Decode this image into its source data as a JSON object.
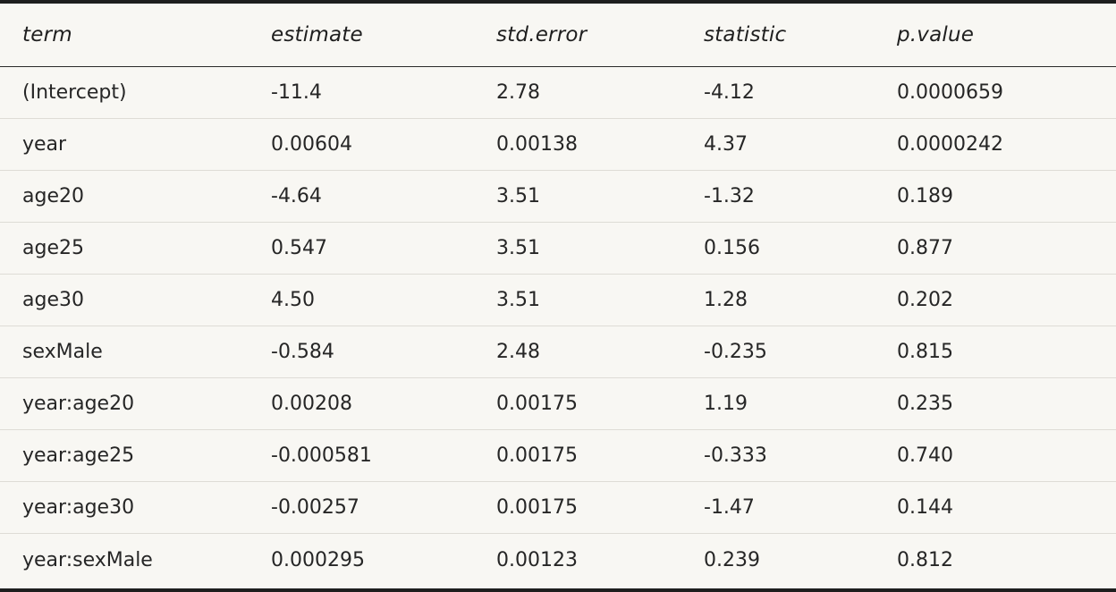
{
  "table": {
    "headers": [
      "term",
      "estimate",
      "std.error",
      "statistic",
      "p.value"
    ],
    "rows": [
      [
        "(Intercept)",
        "-11.4",
        "2.78",
        "-4.12",
        "0.0000659"
      ],
      [
        "year",
        "0.00604",
        "0.00138",
        "4.37",
        "0.0000242"
      ],
      [
        "age20",
        "-4.64",
        "3.51",
        "-1.32",
        "0.189"
      ],
      [
        "age25",
        "0.547",
        "3.51",
        "0.156",
        "0.877"
      ],
      [
        "age30",
        "4.50",
        "3.51",
        "1.28",
        "0.202"
      ],
      [
        "sexMale",
        "-0.584",
        "2.48",
        "-0.235",
        "0.815"
      ],
      [
        "year:age20",
        "0.00208",
        "0.00175",
        "1.19",
        "0.235"
      ],
      [
        "year:age25",
        "-0.000581",
        "0.00175",
        "-0.333",
        "0.740"
      ],
      [
        "year:age30",
        "-0.00257",
        "0.00175",
        "-1.47",
        "0.144"
      ],
      [
        "year:sexMale",
        "0.000295",
        "0.00123",
        "0.239",
        "0.812"
      ]
    ]
  }
}
